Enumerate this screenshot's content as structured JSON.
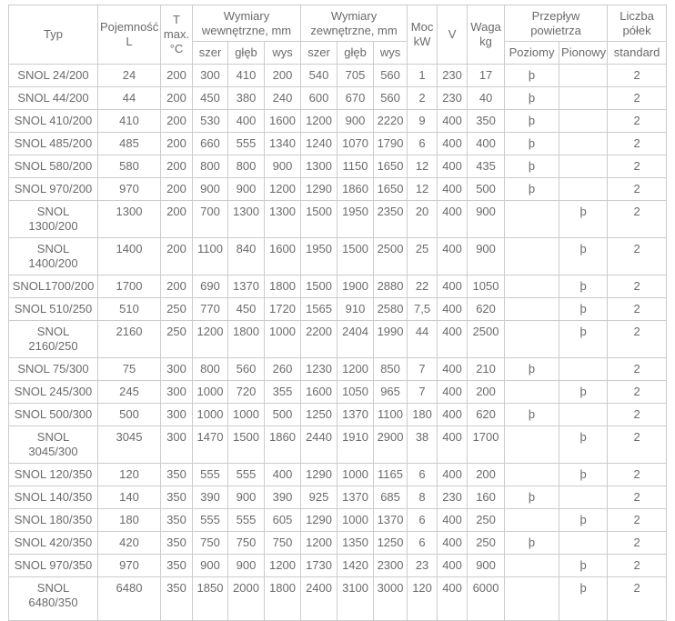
{
  "table": {
    "header": {
      "typ": "Typ",
      "pojemnosc": "Pojemność\nL",
      "tmax": "T\nmax.\n°C",
      "wym_wew": "Wymiary\nwewnętrzne, mm",
      "wym_zew": "Wymiary\nzewnętrzne, mm",
      "moc": "Moc\nkW",
      "v": "V",
      "waga": "Waga\nkg",
      "przeplyw": "Przepływ\npowietrza",
      "liczba_polek": "Liczba\npółek",
      "szer_wew": "szer",
      "gleb_wew": "głęb",
      "wys_wew": "wys",
      "szer_zew": "szer",
      "gleb_zew": "głęb",
      "wys_zew": "wys",
      "poziomy": "Poziomy",
      "pionowy": "Pionowy",
      "standard": "standard"
    },
    "check_glyph": "þ",
    "rows": [
      {
        "typ": "SNOL 24/200",
        "pojemnosc": "24",
        "tmax": "200",
        "w_szer": "300",
        "w_gleb": "410",
        "w_wys": "200",
        "z_szer": "540",
        "z_gleb": "705",
        "z_wys": "560",
        "moc": "1",
        "v": "230",
        "waga": "17",
        "poziomy": "þ",
        "pionowy": "",
        "polki": "2"
      },
      {
        "typ": "SNOL 44/200",
        "pojemnosc": "44",
        "tmax": "200",
        "w_szer": "450",
        "w_gleb": "380",
        "w_wys": "240",
        "z_szer": "600",
        "z_gleb": "670",
        "z_wys": "560",
        "moc": "2",
        "v": "230",
        "waga": "40",
        "poziomy": "þ",
        "pionowy": "",
        "polki": "2"
      },
      {
        "typ": "SNOL 410/200",
        "pojemnosc": "410",
        "tmax": "200",
        "w_szer": "530",
        "w_gleb": "400",
        "w_wys": "1600",
        "z_szer": "1200",
        "z_gleb": "900",
        "z_wys": "2220",
        "moc": "9",
        "v": "400",
        "waga": "350",
        "poziomy": "þ",
        "pionowy": "",
        "polki": "2"
      },
      {
        "typ": "SNOL 485/200",
        "pojemnosc": "485",
        "tmax": "200",
        "w_szer": "660",
        "w_gleb": "555",
        "w_wys": "1340",
        "z_szer": "1240",
        "z_gleb": "1070",
        "z_wys": "1790",
        "moc": "6",
        "v": "400",
        "waga": "400",
        "poziomy": "þ",
        "pionowy": "",
        "polki": "2"
      },
      {
        "typ": "SNOL 580/200",
        "pojemnosc": "580",
        "tmax": "200",
        "w_szer": "800",
        "w_gleb": "800",
        "w_wys": "900",
        "z_szer": "1300",
        "z_gleb": "1150",
        "z_wys": "1650",
        "moc": "12",
        "v": "400",
        "waga": "435",
        "poziomy": "þ",
        "pionowy": "",
        "polki": "2"
      },
      {
        "typ": "SNOL 970/200",
        "pojemnosc": "970",
        "tmax": "200",
        "w_szer": "900",
        "w_gleb": "900",
        "w_wys": "1200",
        "z_szer": "1290",
        "z_gleb": "1860",
        "z_wys": "1650",
        "moc": "12",
        "v": "400",
        "waga": "500",
        "poziomy": "þ",
        "pionowy": "",
        "polki": "2"
      },
      {
        "typ": "SNOL\n1300/200",
        "pojemnosc": "1300",
        "tmax": "200",
        "w_szer": "700",
        "w_gleb": "1300",
        "w_wys": "1300",
        "z_szer": "1500",
        "z_gleb": "1950",
        "z_wys": "2350",
        "moc": "20",
        "v": "400",
        "waga": "900",
        "poziomy": "",
        "pionowy": "þ",
        "polki": "2"
      },
      {
        "typ": "SNOL\n1400/200",
        "pojemnosc": "1400",
        "tmax": "200",
        "w_szer": "1100",
        "w_gleb": "840",
        "w_wys": "1600",
        "z_szer": "1950",
        "z_gleb": "1500",
        "z_wys": "2500",
        "moc": "25",
        "v": "400",
        "waga": "900",
        "poziomy": "",
        "pionowy": "þ",
        "polki": "2"
      },
      {
        "typ": "SNOL1700/200",
        "pojemnosc": "1700",
        "tmax": "200",
        "w_szer": "690",
        "w_gleb": "1370",
        "w_wys": "1800",
        "z_szer": "1500",
        "z_gleb": "1900",
        "z_wys": "2880",
        "moc": "22",
        "v": "400",
        "waga": "1050",
        "poziomy": "",
        "pionowy": "þ",
        "polki": "2"
      },
      {
        "typ": "SNOL 510/250",
        "pojemnosc": "510",
        "tmax": "250",
        "w_szer": "770",
        "w_gleb": "450",
        "w_wys": "1720",
        "z_szer": "1565",
        "z_gleb": "910",
        "z_wys": "2580",
        "moc": "7,5",
        "v": "400",
        "waga": "620",
        "poziomy": "",
        "pionowy": "þ",
        "polki": "2"
      },
      {
        "typ": "SNOL\n2160/250",
        "pojemnosc": "2160",
        "tmax": "250",
        "w_szer": "1200",
        "w_gleb": "1800",
        "w_wys": "1000",
        "z_szer": "2200",
        "z_gleb": "2404",
        "z_wys": "1990",
        "moc": "44",
        "v": "400",
        "waga": "2500",
        "poziomy": "",
        "pionowy": "þ",
        "polki": "2"
      },
      {
        "typ": "SNOL 75/300",
        "pojemnosc": "75",
        "tmax": "300",
        "w_szer": "800",
        "w_gleb": "560",
        "w_wys": "260",
        "z_szer": "1230",
        "z_gleb": "1200",
        "z_wys": "850",
        "moc": "7",
        "v": "400",
        "waga": "210",
        "poziomy": "þ",
        "pionowy": "",
        "polki": "2"
      },
      {
        "typ": "SNOL 245/300",
        "pojemnosc": "245",
        "tmax": "300",
        "w_szer": "1000",
        "w_gleb": "720",
        "w_wys": "355",
        "z_szer": "1600",
        "z_gleb": "1050",
        "z_wys": "965",
        "moc": "7",
        "v": "400",
        "waga": "200",
        "poziomy": "",
        "pionowy": "þ",
        "polki": "2"
      },
      {
        "typ": "SNOL 500/300",
        "pojemnosc": "500",
        "tmax": "300",
        "w_szer": "1000",
        "w_gleb": "1000",
        "w_wys": "500",
        "z_szer": "1250",
        "z_gleb": "1370",
        "z_wys": "1100",
        "moc": "180",
        "v": "400",
        "waga": "620",
        "poziomy": "þ",
        "pionowy": "",
        "polki": "2"
      },
      {
        "typ": "SNOL\n3045/300",
        "pojemnosc": "3045",
        "tmax": "300",
        "w_szer": "1470",
        "w_gleb": "1500",
        "w_wys": "1860",
        "z_szer": "2440",
        "z_gleb": "1910",
        "z_wys": "2900",
        "moc": "38",
        "v": "400",
        "waga": "1700",
        "poziomy": "",
        "pionowy": "þ",
        "polki": "2"
      },
      {
        "typ": "SNOL 120/350",
        "pojemnosc": "120",
        "tmax": "350",
        "w_szer": "555",
        "w_gleb": "555",
        "w_wys": "400",
        "z_szer": "1290",
        "z_gleb": "1000",
        "z_wys": "1165",
        "moc": "6",
        "v": "400",
        "waga": "200",
        "poziomy": "",
        "pionowy": "þ",
        "polki": "2"
      },
      {
        "typ": "SNOL 140/350",
        "pojemnosc": "140",
        "tmax": "350",
        "w_szer": "390",
        "w_gleb": "900",
        "w_wys": "390",
        "z_szer": "925",
        "z_gleb": "1370",
        "z_wys": "685",
        "moc": "8",
        "v": "230",
        "waga": "160",
        "poziomy": "þ",
        "pionowy": "",
        "polki": "2"
      },
      {
        "typ": "SNOL 180/350",
        "pojemnosc": "180",
        "tmax": "350",
        "w_szer": "555",
        "w_gleb": "555",
        "w_wys": "605",
        "z_szer": "1290",
        "z_gleb": "1000",
        "z_wys": "1370",
        "moc": "6",
        "v": "400",
        "waga": "250",
        "poziomy": "",
        "pionowy": "þ",
        "polki": "2"
      },
      {
        "typ": "SNOL 420/350",
        "pojemnosc": "420",
        "tmax": "350",
        "w_szer": "750",
        "w_gleb": "750",
        "w_wys": "750",
        "z_szer": "1200",
        "z_gleb": "1350",
        "z_wys": "1250",
        "moc": "6",
        "v": "400",
        "waga": "250",
        "poziomy": "þ",
        "pionowy": "",
        "polki": "2"
      },
      {
        "typ": "SNOL 970/350",
        "pojemnosc": "970",
        "tmax": "350",
        "w_szer": "900",
        "w_gleb": "900",
        "w_wys": "1200",
        "z_szer": "1730",
        "z_gleb": "1420",
        "z_wys": "2300",
        "moc": "23",
        "v": "400",
        "waga": "900",
        "poziomy": "",
        "pionowy": "þ",
        "polki": "2"
      },
      {
        "typ": "SNOL\n6480/350",
        "pojemnosc": "6480",
        "tmax": "350",
        "w_szer": "1850",
        "w_gleb": "2000",
        "w_wys": "1800",
        "z_szer": "2400",
        "z_gleb": "3100",
        "z_wys": "3000",
        "moc": "120",
        "v": "400",
        "waga": "6000",
        "poziomy": "",
        "pionowy": "þ",
        "polki": "2"
      }
    ]
  }
}
